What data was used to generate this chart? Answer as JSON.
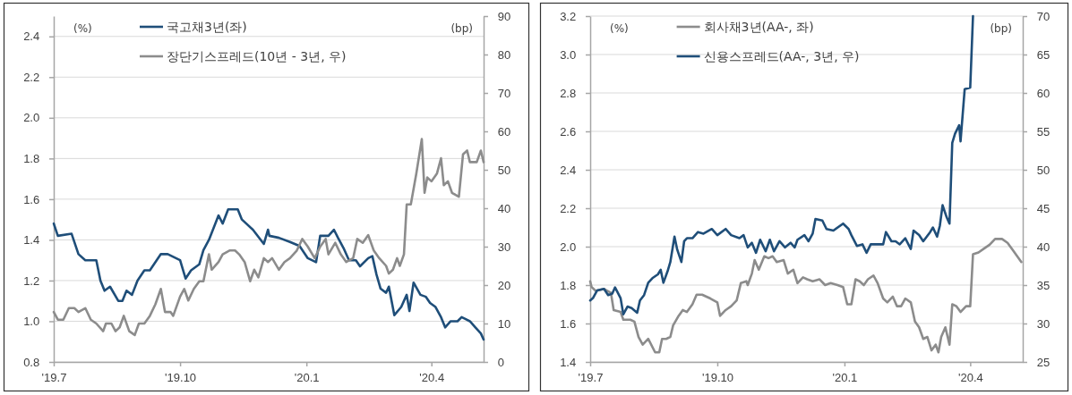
{
  "chart_data": [
    {
      "type": "line",
      "ylabel": "(%)",
      "y2label": "(bp)",
      "xlim": [
        "2019-07-01",
        "2020-05-09"
      ],
      "xticks": [
        {
          "value": "2019-07-01",
          "label": "'19.7"
        },
        {
          "value": "2019-10-01",
          "label": "'19.10"
        },
        {
          "value": "2020-01-01",
          "label": "'20.1"
        },
        {
          "value": "2020-04-01",
          "label": "'20.4"
        }
      ],
      "ylim": [
        0.8,
        2.5
      ],
      "yticks": [
        0.8,
        {
          "value": 1,
          "label": "1.0"
        },
        1.2,
        1.4,
        1.6,
        1.8,
        {
          "value": 2,
          "label": "2.0"
        },
        2.2,
        2.4
      ],
      "y2lim": [
        0,
        90
      ],
      "y2ticks": [
        0,
        10,
        20,
        30,
        40,
        50,
        60,
        70,
        80,
        90
      ],
      "grid": "y",
      "legend": "top",
      "line_style": "solid",
      "marker": "none",
      "series": [
        {
          "name": "국고채3년(좌)",
          "color": "#1f4e79",
          "x": [
            "2019-07-01",
            "2019-07-04",
            "2019-07-14",
            "2019-07-19",
            "2019-07-24",
            "2019-08-01",
            "2019-08-04",
            "2019-08-07",
            "2019-08-11",
            "2019-08-17",
            "2019-08-20",
            "2019-08-23",
            "2019-08-27",
            "2019-08-31",
            "2019-09-05",
            "2019-09-09",
            "2019-09-17",
            "2019-09-22",
            "2019-10-01",
            "2019-10-05",
            "2019-10-09",
            "2019-10-15",
            "2019-10-18",
            "2019-10-22",
            "2019-10-29",
            "2019-11-01",
            "2019-11-05",
            "2019-11-12",
            "2019-11-15",
            "2019-11-23",
            "2019-12-01",
            "2019-12-04",
            "2019-12-05",
            "2019-12-12",
            "2019-12-20",
            "2019-12-27",
            "2020-01-02",
            "2020-01-08",
            "2020-01-11",
            "2020-01-17",
            "2020-01-21",
            "2020-01-24",
            "2020-01-28",
            "2020-02-01",
            "2020-02-06",
            "2020-02-09",
            "2020-02-15",
            "2020-02-18",
            "2020-02-21",
            "2020-02-24",
            "2020-02-28",
            "2020-03-01",
            "2020-03-03",
            "2020-03-05",
            "2020-03-10",
            "2020-03-14",
            "2020-03-16",
            "2020-03-19",
            "2020-03-24",
            "2020-03-28",
            "2020-03-31",
            "2020-04-04",
            "2020-04-08",
            "2020-04-11",
            "2020-04-15",
            "2020-04-20",
            "2020-04-23",
            "2020-04-26",
            "2020-04-29",
            "2020-05-03",
            "2020-05-07",
            "2020-05-09"
          ],
          "values": [
            1.48,
            1.42,
            1.43,
            1.33,
            1.3,
            1.3,
            1.2,
            1.15,
            1.17,
            1.1,
            1.1,
            1.15,
            1.13,
            1.2,
            1.25,
            1.25,
            1.33,
            1.33,
            1.3,
            1.21,
            1.25,
            1.28,
            1.35,
            1.4,
            1.52,
            1.48,
            1.55,
            1.55,
            1.5,
            1.45,
            1.38,
            1.45,
            1.42,
            1.41,
            1.39,
            1.37,
            1.31,
            1.29,
            1.42,
            1.42,
            1.45,
            1.41,
            1.36,
            1.3,
            1.3,
            1.27,
            1.31,
            1.32,
            1.23,
            1.16,
            1.14,
            1.17,
            1.1,
            1.03,
            1.07,
            1.13,
            1.05,
            1.19,
            1.13,
            1.12,
            1.09,
            1.07,
            1.02,
            0.97,
            1.0,
            1.0,
            1.02,
            1.01,
            1.0,
            0.97,
            0.94,
            0.91
          ]
        },
        {
          "name": "장단기스프레드(10년 - 3년, 우)",
          "color": "#8c8c8c",
          "axis": "y2",
          "x": [
            "2019-07-01",
            "2019-07-04",
            "2019-07-08",
            "2019-07-12",
            "2019-07-16",
            "2019-07-19",
            "2019-07-24",
            "2019-07-28",
            "2019-08-01",
            "2019-08-06",
            "2019-08-08",
            "2019-08-12",
            "2019-08-15",
            "2019-08-18",
            "2019-08-21",
            "2019-08-25",
            "2019-08-29",
            "2019-09-01",
            "2019-09-05",
            "2019-09-09",
            "2019-09-13",
            "2019-09-17",
            "2019-09-20",
            "2019-09-24",
            "2019-09-26",
            "2019-10-01",
            "2019-10-04",
            "2019-10-07",
            "2019-10-11",
            "2019-10-15",
            "2019-10-18",
            "2019-10-22",
            "2019-10-24",
            "2019-10-29",
            "2019-11-01",
            "2019-11-06",
            "2019-11-10",
            "2019-11-13",
            "2019-11-17",
            "2019-11-21",
            "2019-11-24",
            "2019-11-27",
            "2019-12-01",
            "2019-12-04",
            "2019-12-07",
            "2019-12-12",
            "2019-12-16",
            "2019-12-20",
            "2019-12-25",
            "2019-12-29",
            "2020-01-02",
            "2020-01-07",
            "2020-01-11",
            "2020-01-15",
            "2020-01-17",
            "2020-01-22",
            "2020-01-26",
            "2020-01-30",
            "2020-02-04",
            "2020-02-07",
            "2020-02-11",
            "2020-02-15",
            "2020-02-19",
            "2020-02-23",
            "2020-02-28",
            "2020-03-01",
            "2020-03-04",
            "2020-03-07",
            "2020-03-09",
            "2020-03-12",
            "2020-03-14",
            "2020-03-17",
            "2020-03-21",
            "2020-03-25",
            "2020-03-27",
            "2020-03-29",
            "2020-04-01",
            "2020-04-05",
            "2020-04-08",
            "2020-04-10",
            "2020-04-13",
            "2020-04-16",
            "2020-04-21",
            "2020-04-24",
            "2020-04-27",
            "2020-04-29",
            "2020-05-04",
            "2020-05-07",
            "2020-05-09"
          ],
          "values": [
            13,
            11,
            11,
            14,
            14,
            13,
            14,
            11,
            10,
            8,
            10,
            10,
            8,
            9,
            12,
            8,
            7,
            10,
            10,
            12,
            15,
            19,
            13,
            13,
            12,
            17,
            19,
            16,
            19,
            21,
            21,
            28,
            24,
            26,
            28,
            29,
            29,
            28,
            26,
            21,
            24,
            22,
            27,
            26,
            27,
            24,
            26,
            27,
            29,
            32,
            30,
            27,
            30,
            32,
            28,
            31,
            28,
            26,
            27,
            32,
            31,
            33,
            29,
            27,
            25,
            23,
            24,
            27,
            25,
            28,
            41,
            41,
            49,
            58,
            44,
            48,
            47,
            49,
            53,
            46,
            47,
            44,
            43,
            54,
            55,
            52,
            52,
            55,
            52
          ]
        }
      ]
    },
    {
      "type": "line",
      "ylabel": "(%)",
      "y2label": "(bp)",
      "xlim": [
        "2019-07-01",
        "2020-05-09"
      ],
      "xticks": [
        {
          "value": "2019-07-01",
          "label": "'19.7"
        },
        {
          "value": "2019-10-01",
          "label": "'19.10"
        },
        {
          "value": "2020-01-01",
          "label": "'20.1"
        },
        {
          "value": "2020-04-01",
          "label": "'20.4"
        }
      ],
      "ylim": [
        1.4,
        3.2
      ],
      "yticks": [
        1.4,
        1.6,
        1.8,
        {
          "value": 2,
          "label": "2.0"
        },
        2.2,
        2.4,
        2.6,
        2.8,
        {
          "value": 3,
          "label": "3.0"
        },
        3.2
      ],
      "y2lim": [
        25,
        70
      ],
      "y2ticks": [
        25,
        30,
        35,
        40,
        45,
        50,
        55,
        60,
        65,
        70
      ],
      "grid": "y",
      "legend": "top",
      "line_style": "solid",
      "marker": "none",
      "series": [
        {
          "name": "회사채3년(AA-, 좌)",
          "color": "#8c8c8c",
          "x": [
            "2019-07-01",
            "2019-07-02",
            "2019-07-05",
            "2019-07-11",
            "2019-07-16",
            "2019-07-18",
            "2019-07-23",
            "2019-07-25",
            "2019-07-30",
            "2019-08-02",
            "2019-08-05",
            "2019-08-08",
            "2019-08-12",
            "2019-08-17",
            "2019-08-20",
            "2019-08-22",
            "2019-08-25",
            "2019-08-28",
            "2019-08-30",
            "2019-09-03",
            "2019-09-06",
            "2019-09-09",
            "2019-09-13",
            "2019-09-16",
            "2019-09-20",
            "2019-09-26",
            "2019-10-01",
            "2019-10-03",
            "2019-10-07",
            "2019-10-11",
            "2019-10-15",
            "2019-10-18",
            "2019-10-22",
            "2019-10-23",
            "2019-10-26",
            "2019-10-28",
            "2019-10-31",
            "2019-11-04",
            "2019-11-07",
            "2019-11-10",
            "2019-11-13",
            "2019-11-18",
            "2019-11-21",
            "2019-11-25",
            "2019-11-28",
            "2019-12-02",
            "2019-12-05",
            "2019-12-09",
            "2019-12-14",
            "2019-12-18",
            "2019-12-22",
            "2019-12-27",
            "2019-12-31",
            "2020-01-03",
            "2020-01-06",
            "2020-01-09",
            "2020-01-12",
            "2020-01-15",
            "2020-01-18",
            "2020-01-22",
            "2020-01-25",
            "2020-01-29",
            "2020-02-01",
            "2020-02-05",
            "2020-02-08",
            "2020-02-11",
            "2020-02-14",
            "2020-02-18",
            "2020-02-21",
            "2020-02-24",
            "2020-02-27",
            "2020-03-01",
            "2020-03-04",
            "2020-03-07",
            "2020-03-09",
            "2020-03-11",
            "2020-03-14",
            "2020-03-17",
            "2020-03-19",
            "2020-03-22",
            "2020-03-25",
            "2020-03-29",
            "2020-04-01",
            "2020-04-03",
            "2020-04-07",
            "2020-04-11",
            "2020-04-15",
            "2020-04-19",
            "2020-04-24",
            "2020-04-28",
            "2020-05-02",
            "2020-05-08"
          ],
          "values": [
            1.82,
            1.79,
            1.77,
            1.78,
            1.76,
            1.67,
            1.66,
            1.62,
            1.62,
            1.61,
            1.53,
            1.49,
            1.52,
            1.45,
            1.45,
            1.52,
            1.52,
            1.53,
            1.59,
            1.64,
            1.67,
            1.66,
            1.7,
            1.75,
            1.75,
            1.73,
            1.71,
            1.64,
            1.67,
            1.69,
            1.72,
            1.81,
            1.82,
            1.8,
            1.86,
            1.93,
            1.88,
            1.95,
            1.94,
            1.95,
            1.92,
            1.93,
            1.86,
            1.88,
            1.81,
            1.84,
            1.83,
            1.82,
            1.83,
            1.8,
            1.81,
            1.8,
            1.79,
            1.7,
            1.7,
            1.83,
            1.82,
            1.8,
            1.83,
            1.85,
            1.81,
            1.73,
            1.71,
            1.74,
            1.69,
            1.69,
            1.73,
            1.71,
            1.61,
            1.58,
            1.52,
            1.53,
            1.46,
            1.49,
            1.45,
            1.53,
            1.58,
            1.49,
            1.7,
            1.69,
            1.66,
            1.69,
            1.69,
            1.96,
            1.97,
            1.99,
            2.01,
            2.04,
            2.04,
            2.02,
            1.98,
            1.92
          ]
        },
        {
          "name": "신용스프레드(AA-, 3년, 우)",
          "color": "#1f4e79",
          "axis": "y2",
          "x": [
            "2019-07-01",
            "2019-07-03",
            "2019-07-06",
            "2019-07-11",
            "2019-07-14",
            "2019-07-17",
            "2019-07-19",
            "2019-07-23",
            "2019-07-25",
            "2019-07-28",
            "2019-07-31",
            "2019-08-04",
            "2019-08-06",
            "2019-08-09",
            "2019-08-12",
            "2019-08-15",
            "2019-08-19",
            "2019-08-21",
            "2019-08-23",
            "2019-08-26",
            "2019-08-28",
            "2019-08-31",
            "2019-09-02",
            "2019-09-05",
            "2019-09-07",
            "2019-09-09",
            "2019-09-13",
            "2019-09-17",
            "2019-09-21",
            "2019-09-27",
            "2019-10-01",
            "2019-10-07",
            "2019-10-11",
            "2019-10-17",
            "2019-10-20",
            "2019-10-23",
            "2019-10-26",
            "2019-10-29",
            "2019-11-01",
            "2019-11-05",
            "2019-11-08",
            "2019-11-11",
            "2019-11-15",
            "2019-11-19",
            "2019-11-23",
            "2019-11-26",
            "2019-11-28",
            "2019-12-03",
            "2019-12-06",
            "2019-12-09",
            "2019-12-11",
            "2019-12-16",
            "2019-12-19",
            "2019-12-24",
            "2019-12-31",
            "2020-01-04",
            "2020-01-06",
            "2020-01-10",
            "2020-01-14",
            "2020-01-17",
            "2020-01-20",
            "2020-01-26",
            "2020-01-29",
            "2020-01-31",
            "2020-02-04",
            "2020-02-07",
            "2020-02-10",
            "2020-02-14",
            "2020-02-18",
            "2020-02-20",
            "2020-02-24",
            "2020-02-27",
            "2020-03-03",
            "2020-03-05",
            "2020-03-08",
            "2020-03-10",
            "2020-03-12",
            "2020-03-15",
            "2020-03-17",
            "2020-03-19",
            "2020-03-21",
            "2020-03-24",
            "2020-03-25",
            "2020-03-28",
            "2020-04-01",
            "2020-04-03"
          ],
          "values": [
            33.0,
            33.3,
            34.3,
            34.5,
            33.7,
            33.9,
            34.7,
            33.3,
            31.2,
            32.2,
            32.0,
            31.4,
            33.0,
            33.7,
            35.3,
            35.9,
            36.4,
            37.0,
            35.3,
            36.8,
            38.0,
            41.3,
            39.6,
            38.0,
            40.7,
            41.1,
            41.1,
            41.9,
            41.7,
            42.3,
            41.5,
            42.3,
            41.5,
            41.1,
            41.5,
            39.9,
            40.5,
            39.2,
            40.9,
            39.4,
            40.9,
            39.4,
            40.7,
            39.9,
            40.5,
            39.9,
            40.9,
            41.5,
            40.7,
            41.7,
            43.6,
            43.4,
            42.3,
            42.1,
            43.0,
            42.3,
            41.5,
            40.1,
            40.3,
            39.2,
            40.3,
            40.3,
            40.3,
            41.9,
            40.7,
            40.7,
            40.3,
            41.1,
            39.7,
            42.1,
            41.5,
            40.7,
            41.9,
            42.5,
            41.3,
            42.7,
            45.4,
            43.8,
            43.0,
            53.5,
            54.7,
            55.8,
            53.7,
            60.5,
            60.7,
            70
          ]
        }
      ]
    }
  ]
}
